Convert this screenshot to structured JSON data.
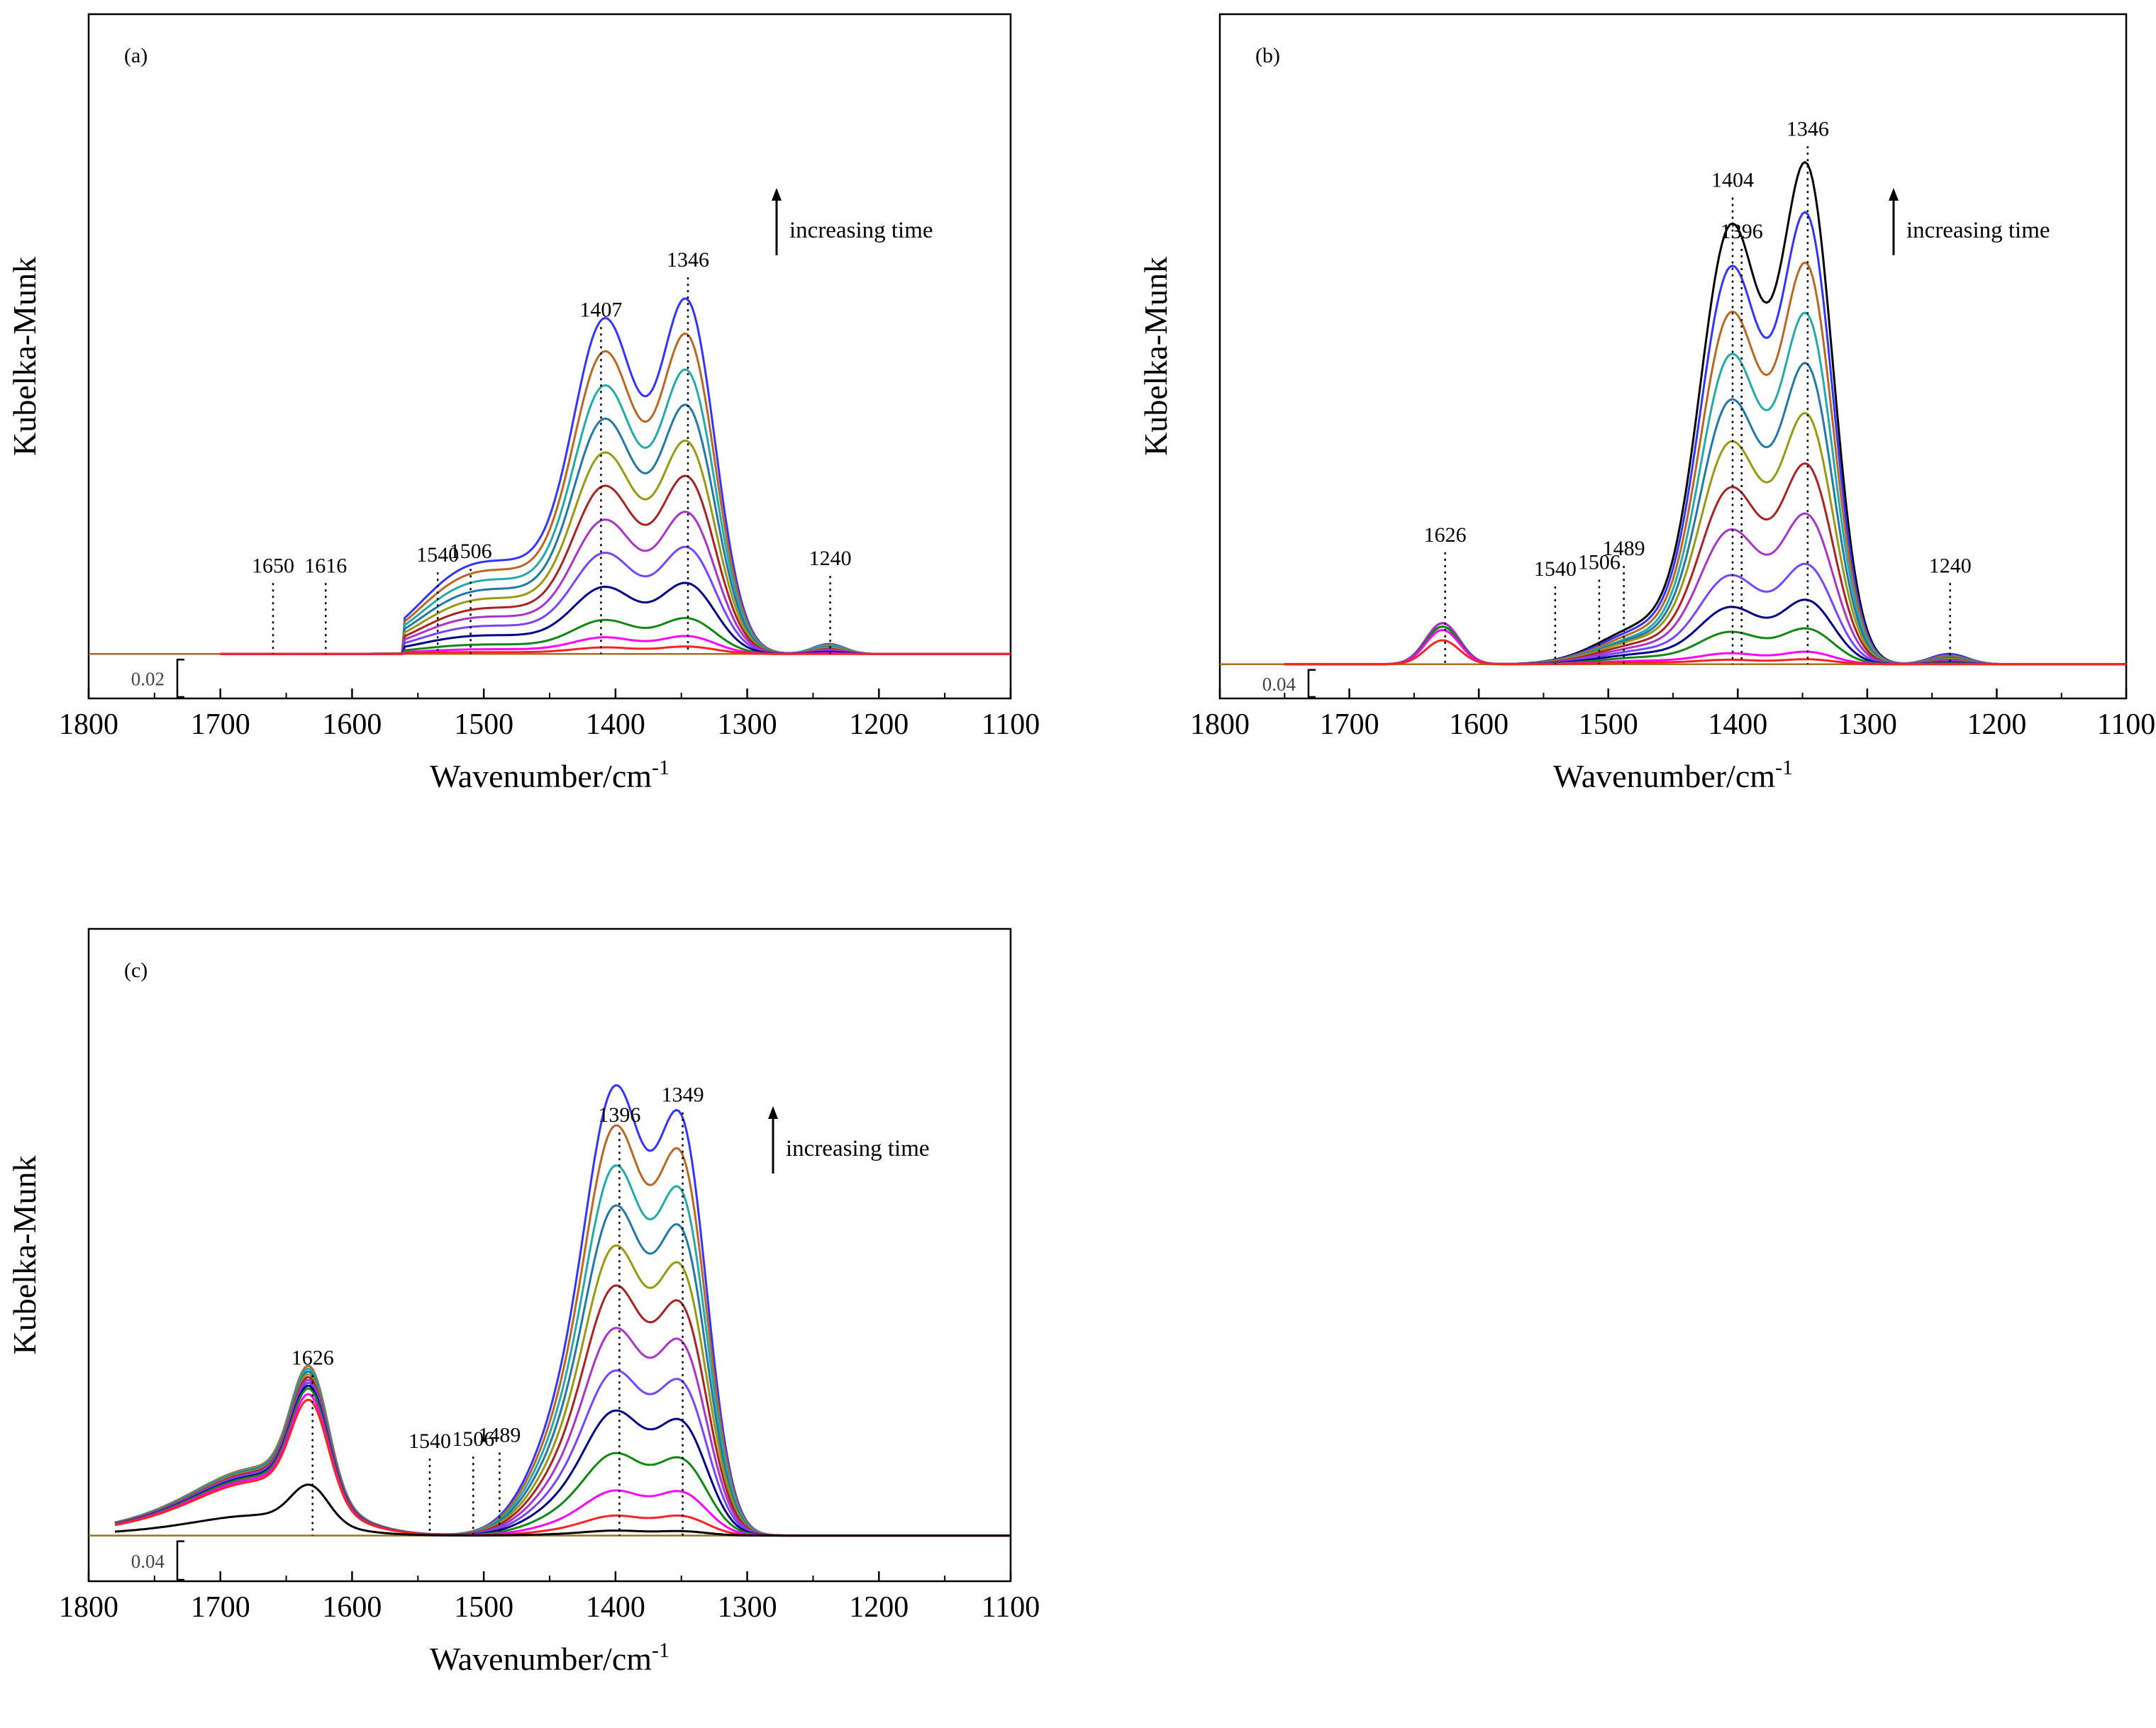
{
  "chart_data": [
    {
      "panel": "(a)",
      "type": "line",
      "xlabel": "Wavenumber/cm",
      "xlabel_sup": "-1",
      "ylabel": "Kubelka-Munk",
      "xlim": [
        1800,
        1100
      ],
      "x_inverted": true,
      "xticks": [
        1800,
        1700,
        1600,
        1500,
        1400,
        1300,
        1200,
        1100
      ],
      "ylim": [
        -0.012,
        0.09
      ],
      "data_range": [
        1700,
        1100
      ],
      "scale_bar": "0.02",
      "scale_bar_value": 0.02,
      "arrow_text": "increasing time",
      "peak_labels": [
        {
          "text": "1650",
          "x": 1660,
          "y": 0.0
        },
        {
          "text": "1616",
          "x": 1620,
          "y": 0.0
        },
        {
          "text": "1540",
          "x": 1535,
          "y": 0.0015
        },
        {
          "text": "1506",
          "x": 1510,
          "y": 0.002
        },
        {
          "text": "1407",
          "x": 1411,
          "y": 0.0405
        },
        {
          "text": "1346",
          "x": 1345,
          "y": 0.0475
        },
        {
          "text": "1240",
          "x": 1237,
          "y": 0.001
        }
      ],
      "series": [
        {
          "color": "#3333ff",
          "values": [
            0,
            0.0039,
            0.0215,
            0.0405,
            0.0272,
            0.0475,
            0.0014,
            0
          ]
        },
        {
          "color": "#bb6622",
          "values": [
            0,
            0.0035,
            0.0194,
            0.0365,
            0.0245,
            0.0428,
            0.0013,
            0
          ]
        },
        {
          "color": "#22aaaa",
          "values": [
            0,
            0.0031,
            0.0172,
            0.0324,
            0.0218,
            0.038,
            0.0012,
            0
          ]
        },
        {
          "color": "#2277aa",
          "values": [
            0,
            0.0027,
            0.015,
            0.0284,
            0.019,
            0.0333,
            0.001,
            0
          ]
        },
        {
          "color": "#999911",
          "values": [
            0,
            0.0023,
            0.0129,
            0.0243,
            0.0163,
            0.0285,
            0.0009,
            0
          ]
        },
        {
          "color": "#aa2222",
          "values": [
            0,
            0.0019,
            0.0107,
            0.0203,
            0.0136,
            0.0238,
            0.0007,
            0
          ]
        },
        {
          "color": "#aa33cc",
          "values": [
            0,
            0.0016,
            0.0086,
            0.0162,
            0.0109,
            0.019,
            0.0006,
            0
          ]
        },
        {
          "color": "#7744ff",
          "values": [
            0,
            0.0012,
            0.0065,
            0.0122,
            0.0082,
            0.0143,
            0.0004,
            0
          ]
        },
        {
          "color": "#000088",
          "values": [
            0,
            0.0008,
            0.0043,
            0.0081,
            0.0054,
            0.0095,
            0.0003,
            0
          ]
        },
        {
          "color": "#118811",
          "values": [
            0,
            0.0004,
            0.0022,
            0.0041,
            0.0027,
            0.0048,
            0.0001,
            0
          ]
        },
        {
          "color": "#ff00ff",
          "values": [
            0,
            0.0002,
            0.0011,
            0.002,
            0.0014,
            0.0024,
            0.0001,
            0
          ]
        },
        {
          "color": "#ff2222",
          "values": [
            0,
            0.0001,
            0.0004,
            0.0008,
            0.0005,
            0.001,
            0,
            0
          ]
        }
      ]
    },
    {
      "panel": "(b)",
      "type": "line",
      "xlabel": "Wavenumber/cm",
      "xlabel_sup": "-1",
      "ylabel": "Kubelka-Munk",
      "xlim": [
        1800,
        1100
      ],
      "x_inverted": true,
      "xticks": [
        1800,
        1700,
        1600,
        1500,
        1400,
        1300,
        1200,
        1100
      ],
      "ylim": [
        -0.012,
        0.19
      ],
      "data_range": [
        1750,
        1100
      ],
      "scale_bar": "0.04",
      "scale_bar_value": 0.04,
      "arrow_text": "increasing time",
      "peak_labels": [
        {
          "text": "1626",
          "x": 1626,
          "y": 0.012
        },
        {
          "text": "1540",
          "x": 1541,
          "y": 0.002
        },
        {
          "text": "1506",
          "x": 1507,
          "y": 0.004
        },
        {
          "text": "1489",
          "x": 1488,
          "y": 0.008
        },
        {
          "text": "1404",
          "x": 1404,
          "y": 0.125
        },
        {
          "text": "1396",
          "x": 1397,
          "y": 0.11
        },
        {
          "text": "1346",
          "x": 1346,
          "y": 0.14
        },
        {
          "text": "1240",
          "x": 1236,
          "y": 0.003
        }
      ],
      "series": [
        {
          "color": "#000000",
          "values": [
            0.012,
            0.011,
            0.125,
            0.1,
            0.14,
            0.003
          ]
        },
        {
          "color": "#3333ff",
          "values": [
            0.012,
            0.01,
            0.113,
            0.09,
            0.126,
            0.003
          ]
        },
        {
          "color": "#bb6622",
          "values": [
            0.012,
            0.009,
            0.1,
            0.08,
            0.112,
            0.0025
          ]
        },
        {
          "color": "#22aaaa",
          "values": [
            0.012,
            0.008,
            0.088,
            0.07,
            0.098,
            0.002
          ]
        },
        {
          "color": "#2277aa",
          "values": [
            0.012,
            0.0075,
            0.075,
            0.06,
            0.084,
            0.002
          ]
        },
        {
          "color": "#999911",
          "values": [
            0.012,
            0.007,
            0.063,
            0.05,
            0.07,
            0.0015
          ]
        },
        {
          "color": "#aa2222",
          "values": [
            0.012,
            0.006,
            0.05,
            0.04,
            0.056,
            0.0012
          ]
        },
        {
          "color": "#aa33cc",
          "values": [
            0.012,
            0.005,
            0.038,
            0.03,
            0.042,
            0.001
          ]
        },
        {
          "color": "#7744ff",
          "values": [
            0.011,
            0.004,
            0.025,
            0.02,
            0.028,
            0.0007
          ]
        },
        {
          "color": "#000088",
          "values": [
            0.011,
            0.003,
            0.016,
            0.013,
            0.018,
            0.0005
          ]
        },
        {
          "color": "#118811",
          "values": [
            0.011,
            0.002,
            0.009,
            0.007,
            0.01,
            0.0003
          ]
        },
        {
          "color": "#ff00ff",
          "values": [
            0.01,
            0.001,
            0.003,
            0.0025,
            0.0035,
            0.0001
          ]
        },
        {
          "color": "#ff2222",
          "values": [
            0.007,
            0.0005,
            0.0012,
            0.001,
            0.0014,
            0
          ]
        }
      ]
    },
    {
      "panel": "(c)",
      "type": "line",
      "xlabel": "Wavenumber/cm",
      "xlabel_sup": "-1",
      "ylabel": "Kubelka-Munk",
      "xlim": [
        1800,
        1100
      ],
      "x_inverted": true,
      "xticks": [
        1800,
        1700,
        1600,
        1500,
        1400,
        1300,
        1200,
        1100
      ],
      "ylim": [
        -0.012,
        0.3
      ],
      "data_range": [
        1780,
        1100
      ],
      "scale_bar": "0.04",
      "scale_bar_value": 0.04,
      "arrow_text": "increasing time",
      "peak_labels": [
        {
          "text": "1626",
          "x": 1630,
          "y": 0.06
        },
        {
          "text": "1540",
          "x": 1541,
          "y": 0.003
        },
        {
          "text": "1506",
          "x": 1508,
          "y": 0.004
        },
        {
          "text": "1489",
          "x": 1488,
          "y": 0.006
        },
        {
          "text": "1396",
          "x": 1397,
          "y": 0.18
        },
        {
          "text": "1349",
          "x": 1349,
          "y": 0.19
        }
      ],
      "series": [
        {
          "color": "#3333ff",
          "values": [
            0.06,
            0.18,
            0.19
          ]
        },
        {
          "color": "#bb6622",
          "values": [
            0.06,
            0.164,
            0.173
          ]
        },
        {
          "color": "#22aaaa",
          "values": [
            0.059,
            0.148,
            0.156
          ]
        },
        {
          "color": "#2277aa",
          "values": [
            0.058,
            0.132,
            0.139
          ]
        },
        {
          "color": "#999911",
          "values": [
            0.057,
            0.116,
            0.122
          ]
        },
        {
          "color": "#aa2222",
          "values": [
            0.056,
            0.1,
            0.105
          ]
        },
        {
          "color": "#aa33cc",
          "values": [
            0.055,
            0.083,
            0.088
          ]
        },
        {
          "color": "#7744ff",
          "values": [
            0.054,
            0.066,
            0.07
          ]
        },
        {
          "color": "#000088",
          "values": [
            0.053,
            0.05,
            0.052
          ]
        },
        {
          "color": "#118811",
          "values": [
            0.052,
            0.033,
            0.035
          ]
        },
        {
          "color": "#ff00ff",
          "values": [
            0.05,
            0.018,
            0.02
          ]
        },
        {
          "color": "#ff2222",
          "values": [
            0.048,
            0.008,
            0.009
          ]
        },
        {
          "color": "#000000",
          "values": [
            0.018,
            0.002,
            0.002
          ]
        }
      ]
    }
  ]
}
